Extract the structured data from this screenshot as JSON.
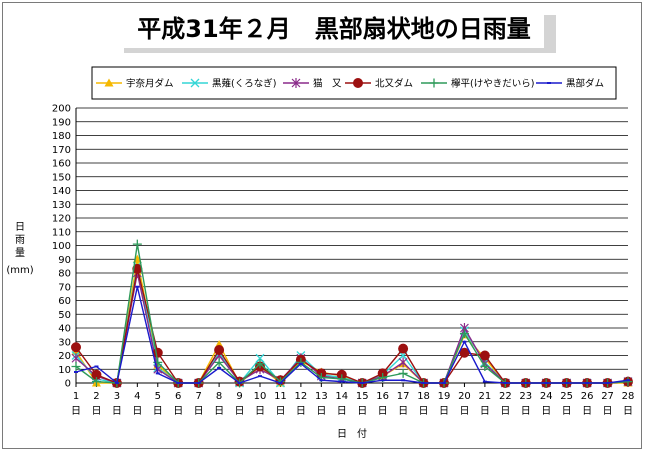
{
  "chart_data": {
    "type": "line",
    "title": "平成31年２月　黒部扇状地の日雨量",
    "xlabel": "日　付",
    "ylabel_chars": [
      "日",
      "雨",
      "量"
    ],
    "yunit": "(mm)",
    "ylim": [
      0,
      200
    ],
    "ystep": 10,
    "grid": true,
    "legend_position": "top",
    "categories": [
      "1",
      "2",
      "3",
      "4",
      "5",
      "6",
      "7",
      "8",
      "9",
      "10",
      "11",
      "12",
      "13",
      "14",
      "15",
      "16",
      "17",
      "18",
      "19",
      "20",
      "21",
      "22",
      "23",
      "24",
      "25",
      "26",
      "27",
      "28"
    ],
    "category_suffix": "日",
    "series": [
      {
        "name": "宇奈月ダム",
        "color": "#f5b800",
        "marker": "triangle",
        "values": [
          23,
          0,
          0,
          90,
          13,
          0,
          0,
          28,
          0,
          12,
          0,
          16,
          8,
          5,
          0,
          5,
          14,
          0,
          0,
          35,
          18,
          0,
          0,
          0,
          0,
          0,
          0,
          0
        ]
      },
      {
        "name": "黒薙(くろなぎ)",
        "color": "#33d6d6",
        "marker": "x",
        "values": [
          20,
          3,
          0,
          85,
          11,
          0,
          0,
          22,
          0,
          18,
          0,
          20,
          6,
          4,
          0,
          6,
          20,
          0,
          0,
          38,
          15,
          0,
          0,
          0,
          0,
          0,
          0,
          1
        ]
      },
      {
        "name": "猫　又",
        "color": "#8a2a8a",
        "marker": "star",
        "values": [
          18,
          5,
          0,
          80,
          10,
          0,
          0,
          20,
          1,
          10,
          2,
          18,
          5,
          3,
          0,
          5,
          15,
          0,
          0,
          40,
          14,
          0,
          0,
          0,
          0,
          0,
          0,
          1
        ]
      },
      {
        "name": "北又ダム",
        "color": "#9c1010",
        "marker": "circle",
        "values": [
          26,
          6,
          0,
          83,
          22,
          0,
          0,
          24,
          1,
          12,
          2,
          17,
          7,
          6,
          0,
          7,
          25,
          0,
          0,
          22,
          20,
          0,
          0,
          0,
          0,
          0,
          0,
          1
        ]
      },
      {
        "name": "欅平(けやきだいら)",
        "color": "#2e9a5a",
        "marker": "plus",
        "values": [
          12,
          1,
          0,
          101,
          15,
          0,
          0,
          15,
          0,
          14,
          1,
          15,
          4,
          3,
          0,
          4,
          7,
          0,
          0,
          36,
          12,
          0,
          0,
          0,
          0,
          0,
          0,
          1
        ]
      },
      {
        "name": "黒部ダム",
        "color": "#1a1acc",
        "marker": "dash",
        "values": [
          8,
          12,
          0,
          70,
          7,
          0,
          0,
          11,
          0,
          5,
          0,
          14,
          2,
          1,
          0,
          2,
          2,
          0,
          0,
          30,
          1,
          0,
          0,
          0,
          0,
          0,
          0,
          2
        ]
      }
    ]
  }
}
